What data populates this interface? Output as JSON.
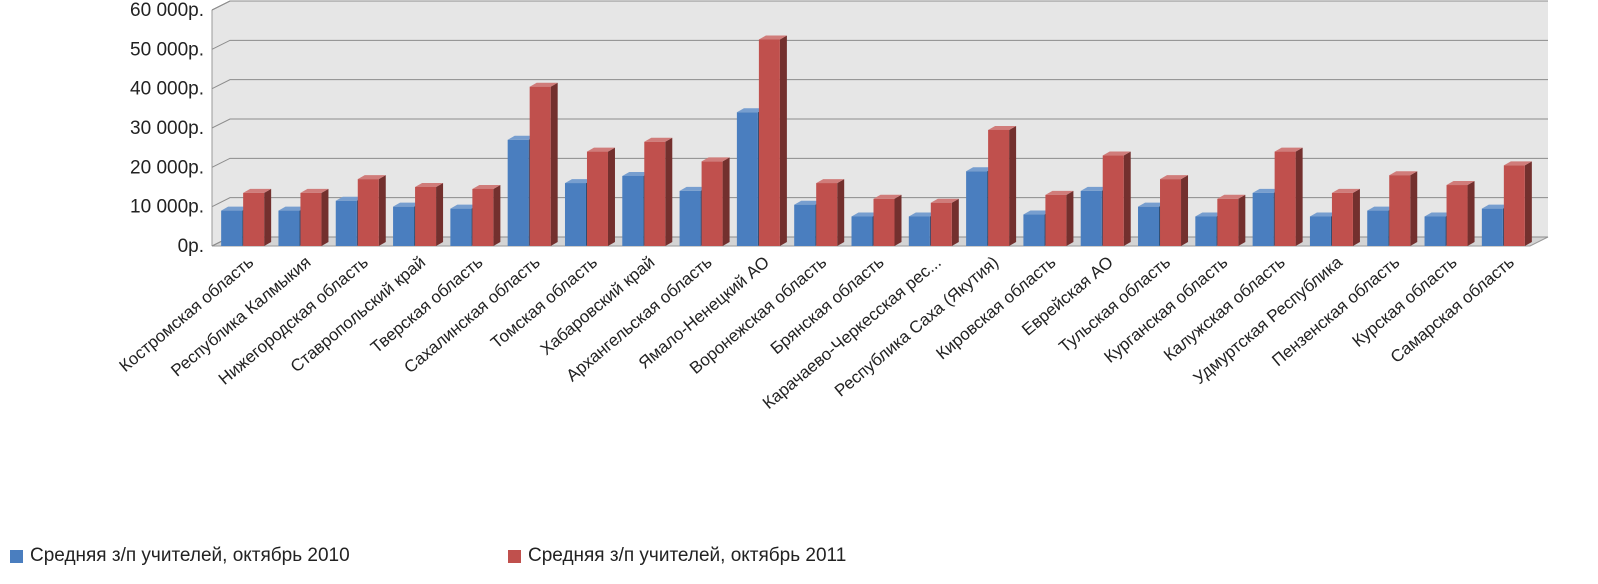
{
  "chart_data": {
    "type": "bar",
    "title": "",
    "xlabel": "",
    "ylabel": "",
    "ylim": [
      0,
      60000
    ],
    "y_tick_values": [
      0,
      10000,
      20000,
      30000,
      40000,
      50000,
      60000
    ],
    "y_tick_labels": [
      "0р.",
      "10 000р.",
      "20 000р.",
      "30 000р.",
      "40 000р.",
      "50 000р.",
      "60 000р."
    ],
    "grid": true,
    "legend_position": "bottom",
    "categories": [
      "Костромская область",
      "Республика Калмыкия",
      "Нижегородская область",
      "Ставропольский край",
      "Тверская область",
      "Сахалинская область",
      "Томская область",
      "Хабаровский край",
      "Архангельская область",
      "Ямало-Ненецкий АО",
      "Воронежская область",
      "Брянская область",
      "Карачаево-Черкесская рес...",
      "Республика Саха (Якутия)",
      "Кировская область",
      "Еврейская АО",
      "Тульская область",
      "Курганская область",
      "Калужская область",
      "Удмуртская Республика",
      "Пензенская область",
      "Курская область",
      "Самарская область"
    ],
    "series": [
      {
        "name": "Средняя з/п учителей, октябрь 2010",
        "color": "#4a7ebf",
        "values": [
          9000,
          9000,
          11500,
          10000,
          9500,
          27000,
          16000,
          17800,
          14000,
          34000,
          10500,
          7500,
          7500,
          19000,
          8000,
          14000,
          10000,
          7500,
          13500,
          7500,
          9000,
          7500,
          9500
        ]
      },
      {
        "name": "Средняя з/п учителей, октябрь 2011",
        "color": "#c0504d",
        "values": [
          13500,
          13500,
          17000,
          15000,
          14500,
          40500,
          24000,
          26500,
          21500,
          52500,
          16000,
          12000,
          11000,
          29500,
          13000,
          23000,
          17000,
          12000,
          24000,
          13500,
          18000,
          15500,
          20500
        ]
      }
    ]
  }
}
